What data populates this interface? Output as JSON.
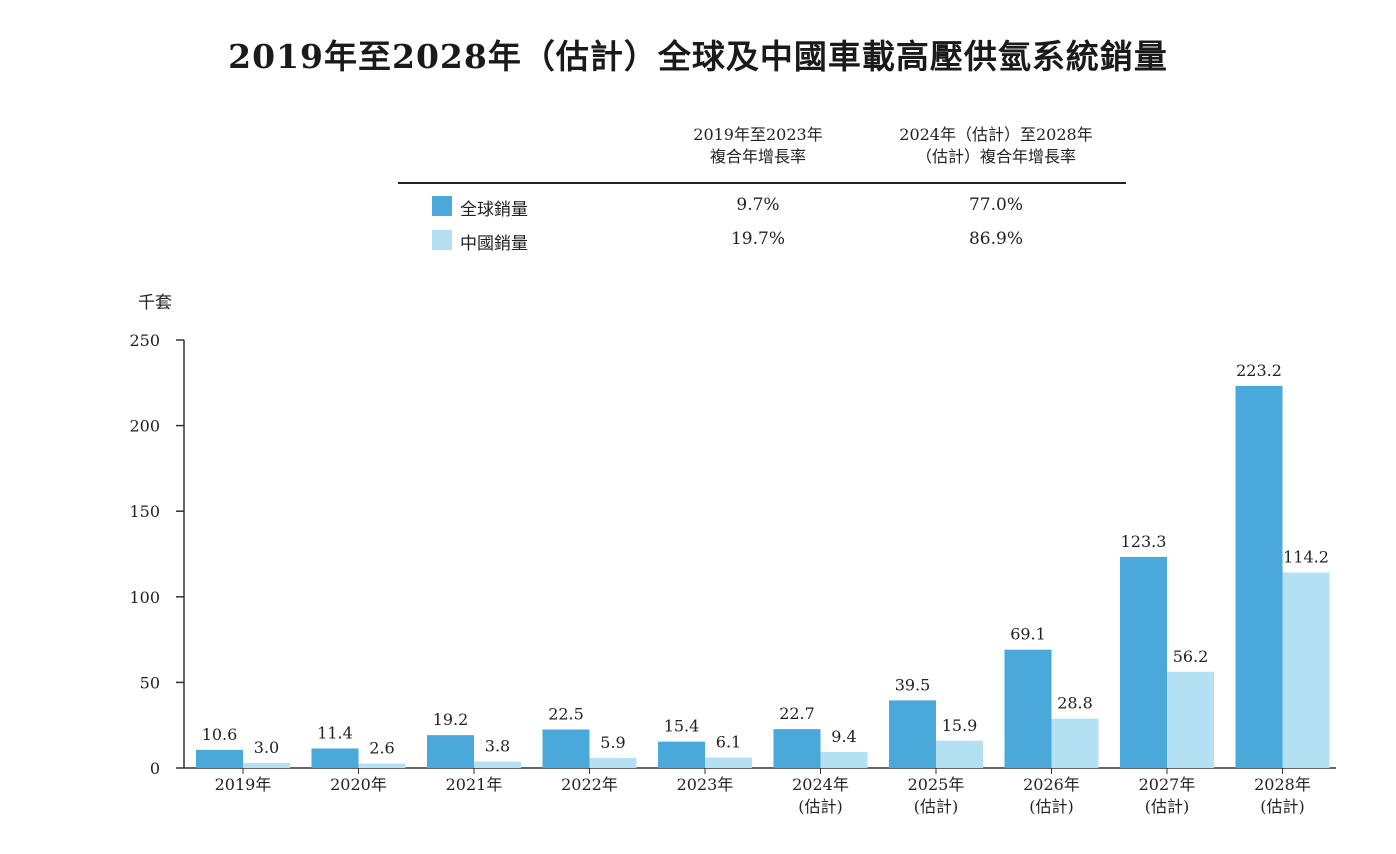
{
  "title": "2019年至2028年（估計）全球及中國車載高壓供氫系統銷量",
  "cagr_table": {
    "col1_header": [
      "2019年至2023年",
      "複合年增長率"
    ],
    "col2_header": [
      "2024年（估計）至2028年",
      "（估計）複合年增長率"
    ],
    "rows": [
      {
        "label": "全球銷量",
        "color": "#4aa8db",
        "cagr_2019_2023": "9.7%",
        "cagr_2024_2028": "77.0%"
      },
      {
        "label": "中國銷量",
        "color": "#b3e0f2",
        "cagr_2019_2023": "19.7%",
        "cagr_2024_2028": "86.9%"
      }
    ]
  },
  "colors": {
    "global": "#4aa8db",
    "china": "#b3e0f2",
    "axis": "#333333"
  },
  "chart_data": {
    "type": "bar",
    "title": "2019年至2028年（估計）全球及中國車載高壓供氫系統銷量",
    "ylabel": "千套",
    "xlabel": "",
    "ylim": [
      0,
      250
    ],
    "yticks": [
      0,
      50,
      100,
      150,
      200,
      250
    ],
    "categories": [
      [
        "2019年"
      ],
      [
        "2020年"
      ],
      [
        "2021年"
      ],
      [
        "2022年"
      ],
      [
        "2023年"
      ],
      [
        "2024年",
        "(估計)"
      ],
      [
        "2025年",
        "(估計)"
      ],
      [
        "2026年",
        "(估計)"
      ],
      [
        "2027年",
        "(估計)"
      ],
      [
        "2028年",
        "(估計)"
      ]
    ],
    "series": [
      {
        "name": "全球銷量",
        "values": [
          10.6,
          11.4,
          19.2,
          22.5,
          15.4,
          22.7,
          39.5,
          69.1,
          123.3,
          223.2
        ],
        "labels": [
          "10.6",
          "11.4",
          "19.2",
          "22.5",
          "15.4",
          "22.7",
          "39.5",
          "69.1",
          "123.3",
          "223.2"
        ]
      },
      {
        "name": "中國銷量",
        "values": [
          3.0,
          2.6,
          3.8,
          5.9,
          6.1,
          9.4,
          15.9,
          28.8,
          56.2,
          114.2
        ],
        "labels": [
          "3.0",
          "2.6",
          "3.8",
          "5.9",
          "6.1",
          "9.4",
          "15.9",
          "28.8",
          "56.2",
          "114.2"
        ]
      }
    ],
    "grid": false,
    "legend": "top"
  }
}
